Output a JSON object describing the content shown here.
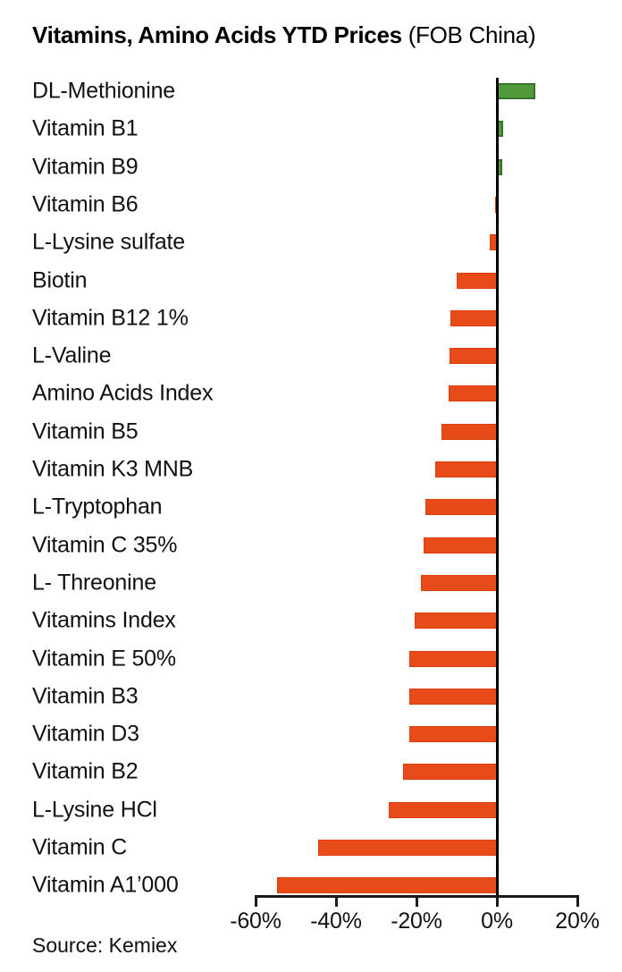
{
  "title": {
    "bold": "Vitamins, Amino Acids YTD Prices",
    "normal": " (FOB China)"
  },
  "source": "Source: Kemiex",
  "colors": {
    "positive_fill": "#539a3c",
    "positive_border": "#357327",
    "negative_fill": "#e84b1a",
    "negative_border": "#d93f0e",
    "axis": "#1a1a1a",
    "zero_line": "#000000",
    "text": "#111111",
    "background": "#ffffff"
  },
  "chart_data": {
    "type": "bar",
    "orientation": "horizontal",
    "title": "Vitamins, Amino Acids YTD Prices (FOB China)",
    "xlabel": "",
    "ylabel": "",
    "unit": "%",
    "xlim": [
      -60,
      20
    ],
    "grid": false,
    "legend": null,
    "source": "Source: Kemiex",
    "categories": [
      "DL-Methionine",
      "Vitamin B1",
      "Vitamin B9",
      "Vitamin B6",
      "L-Lysine sulfate",
      "Biotin",
      "Vitamin B12 1%",
      "L-Valine",
      "Amino Acids Index",
      "Vitamin B5",
      "Vitamin K3 MNB",
      "L-Tryptophan",
      "Vitamin C 35%",
      "L- Threonine",
      "Vitamins Index",
      "Vitamin E 50%",
      "Vitamin B3",
      "Vitamin D3",
      "Vitamin B2",
      "L-Lysine HCl",
      "Vitamin C",
      "Vitamin A1’000"
    ],
    "values": [
      9.5,
      1.5,
      1.3,
      -0.5,
      -1.8,
      -10.0,
      -11.5,
      -11.7,
      -11.9,
      -13.8,
      -15.3,
      -17.8,
      -18.2,
      -19.0,
      -20.4,
      -21.8,
      -21.7,
      -21.8,
      -23.3,
      -27.0,
      -44.4,
      -54.7
    ],
    "ticks": [
      {
        "label": "-60%",
        "value": -60
      },
      {
        "label": "-40%",
        "value": -40
      },
      {
        "label": "-20%",
        "value": -20
      },
      {
        "label": "0%",
        "value": 0
      },
      {
        "label": "20%",
        "value": 20
      }
    ]
  }
}
